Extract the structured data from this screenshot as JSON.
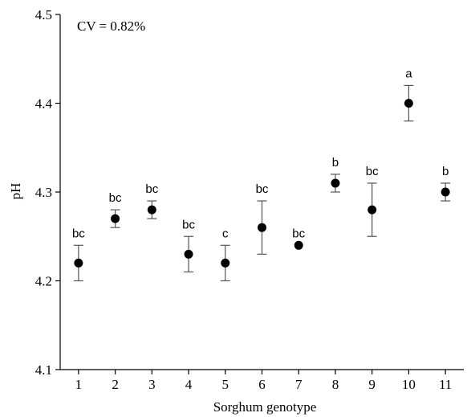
{
  "chart_data": {
    "type": "scatter",
    "title": "",
    "xlabel": "Sorghum genotype",
    "ylabel": "pH",
    "annotation": "CV = 0.82%",
    "ylim": [
      4.1,
      4.5
    ],
    "xlim": [
      0.5,
      11.5
    ],
    "x_ticks": [
      "1",
      "2",
      "3",
      "4",
      "5",
      "6",
      "7",
      "8",
      "9",
      "10",
      "11"
    ],
    "y_ticks": [
      "4.1",
      "4.2",
      "4.3",
      "4.4",
      "4.5"
    ],
    "x": [
      1,
      2,
      3,
      4,
      5,
      6,
      7,
      8,
      9,
      10,
      11
    ],
    "values": [
      4.22,
      4.27,
      4.28,
      4.23,
      4.22,
      4.26,
      4.24,
      4.31,
      4.28,
      4.4,
      4.3
    ],
    "error": [
      0.02,
      0.01,
      0.01,
      0.02,
      0.02,
      0.03,
      0.0,
      0.01,
      0.03,
      0.02,
      0.01
    ],
    "letters": [
      "bc",
      "bc",
      "bc",
      "bc",
      "c",
      "bc",
      "bc",
      "b",
      "bc",
      "a",
      "b"
    ],
    "grid": false,
    "colors": {
      "marker": "#000000",
      "errorbar": "#555555",
      "axis": "#000000"
    }
  }
}
